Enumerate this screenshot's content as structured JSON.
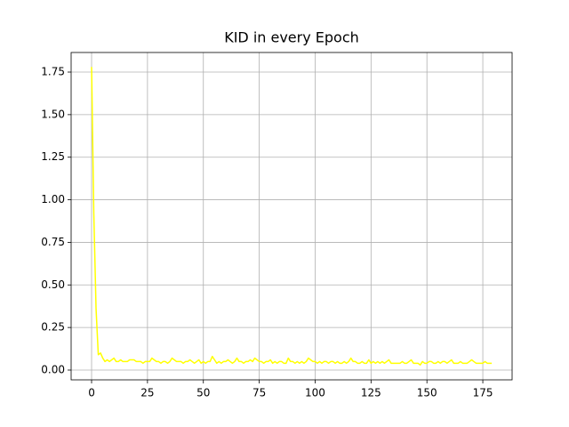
{
  "chart_data": {
    "type": "line",
    "title": "KID in every Epoch",
    "x": [
      0,
      1,
      2,
      3,
      4,
      5,
      6,
      7,
      8,
      9,
      10,
      11,
      12,
      13,
      14,
      15,
      16,
      17,
      18,
      19,
      20,
      21,
      22,
      23,
      24,
      25,
      26,
      27,
      28,
      29,
      30,
      31,
      32,
      33,
      34,
      35,
      36,
      37,
      38,
      39,
      40,
      41,
      42,
      43,
      44,
      45,
      46,
      47,
      48,
      49,
      50,
      51,
      52,
      53,
      54,
      55,
      56,
      57,
      58,
      59,
      60,
      61,
      62,
      63,
      64,
      65,
      66,
      67,
      68,
      69,
      70,
      71,
      72,
      73,
      74,
      75,
      76,
      77,
      78,
      79,
      80,
      81,
      82,
      83,
      84,
      85,
      86,
      87,
      88,
      89,
      90,
      91,
      92,
      93,
      94,
      95,
      96,
      97,
      98,
      99,
      100,
      101,
      102,
      103,
      104,
      105,
      106,
      107,
      108,
      109,
      110,
      111,
      112,
      113,
      114,
      115,
      116,
      117,
      118,
      119,
      120,
      121,
      122,
      123,
      124,
      125,
      126,
      127,
      128,
      129,
      130,
      131,
      132,
      133,
      134,
      135,
      136,
      137,
      138,
      139,
      140,
      141,
      142,
      143,
      144,
      145,
      146,
      147,
      148,
      149,
      150,
      151,
      152,
      153,
      154,
      155,
      156,
      157,
      158,
      159,
      160,
      161,
      162,
      163,
      164,
      165,
      166,
      167,
      168,
      169,
      170,
      171,
      172,
      173,
      174,
      175,
      176,
      177,
      178,
      179
    ],
    "series": [
      {
        "color": "#ffff00",
        "values": [
          1.78,
          0.92,
          0.36,
          0.09,
          0.1,
          0.07,
          0.05,
          0.06,
          0.05,
          0.06,
          0.07,
          0.05,
          0.05,
          0.06,
          0.05,
          0.05,
          0.05,
          0.06,
          0.06,
          0.06,
          0.05,
          0.05,
          0.05,
          0.04,
          0.05,
          0.05,
          0.05,
          0.07,
          0.06,
          0.05,
          0.05,
          0.04,
          0.05,
          0.05,
          0.04,
          0.05,
          0.07,
          0.06,
          0.05,
          0.05,
          0.05,
          0.04,
          0.05,
          0.05,
          0.06,
          0.05,
          0.04,
          0.05,
          0.06,
          0.04,
          0.05,
          0.04,
          0.05,
          0.05,
          0.08,
          0.06,
          0.04,
          0.05,
          0.04,
          0.05,
          0.05,
          0.06,
          0.05,
          0.04,
          0.05,
          0.07,
          0.05,
          0.05,
          0.04,
          0.05,
          0.05,
          0.06,
          0.05,
          0.07,
          0.06,
          0.05,
          0.05,
          0.04,
          0.05,
          0.05,
          0.06,
          0.04,
          0.05,
          0.04,
          0.05,
          0.05,
          0.04,
          0.04,
          0.07,
          0.05,
          0.05,
          0.04,
          0.05,
          0.04,
          0.05,
          0.04,
          0.05,
          0.07,
          0.06,
          0.05,
          0.05,
          0.04,
          0.05,
          0.04,
          0.05,
          0.05,
          0.04,
          0.05,
          0.05,
          0.04,
          0.05,
          0.04,
          0.04,
          0.05,
          0.04,
          0.05,
          0.07,
          0.05,
          0.05,
          0.04,
          0.04,
          0.05,
          0.04,
          0.04,
          0.06,
          0.04,
          0.05,
          0.04,
          0.05,
          0.04,
          0.05,
          0.04,
          0.05,
          0.06,
          0.04,
          0.04,
          0.04,
          0.04,
          0.04,
          0.05,
          0.04,
          0.04,
          0.05,
          0.06,
          0.04,
          0.04,
          0.04,
          0.03,
          0.05,
          0.04,
          0.04,
          0.05,
          0.05,
          0.04,
          0.04,
          0.05,
          0.04,
          0.05,
          0.05,
          0.04,
          0.05,
          0.06,
          0.04,
          0.04,
          0.04,
          0.05,
          0.04,
          0.04,
          0.04,
          0.05,
          0.06,
          0.05,
          0.04,
          0.04,
          0.04,
          0.04,
          0.05,
          0.04,
          0.04,
          0.04
        ]
      }
    ],
    "xlim": [
      -9.15,
      188.1
    ],
    "ylim": [
      -0.0575,
      1.865
    ],
    "xticks": [
      0,
      25,
      50,
      75,
      100,
      125,
      150,
      175
    ],
    "yticks": [
      {
        "value": 0,
        "label": "0.00"
      },
      0.25,
      {
        "value": 0.5,
        "label": "0.50"
      },
      0.75,
      {
        "value": 1,
        "label": "1.00"
      },
      1.25,
      {
        "value": 1.5,
        "label": "1.50"
      },
      1.75
    ],
    "grid": true
  }
}
